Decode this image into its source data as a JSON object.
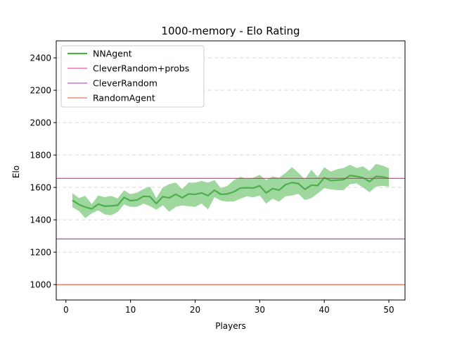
{
  "chart_data": {
    "type": "line",
    "title": "1000-memory - Elo Rating",
    "xlabel": "Players",
    "ylabel": "Elo",
    "xlim": [
      -1.5,
      52.5
    ],
    "ylim": [
      905,
      2505
    ],
    "xticks": [
      0,
      10,
      20,
      30,
      40,
      50
    ],
    "yticks": [
      1000,
      1200,
      1400,
      1600,
      1800,
      2000,
      2200,
      2400
    ],
    "grid": {
      "y": true,
      "x": false,
      "style": "dashed"
    },
    "legend_position": "top-left",
    "series": [
      {
        "name": "NNAgent",
        "kind": "line_with_band",
        "color": "#4daf4a",
        "band_color": "#9fd89f",
        "x": [
          1,
          2,
          3,
          4,
          5,
          6,
          7,
          8,
          9,
          10,
          11,
          12,
          13,
          14,
          15,
          16,
          17,
          18,
          19,
          20,
          21,
          22,
          23,
          24,
          25,
          26,
          27,
          28,
          29,
          30,
          31,
          32,
          33,
          34,
          35,
          36,
          37,
          38,
          39,
          40,
          41,
          42,
          43,
          44,
          45,
          46,
          47,
          48,
          49,
          50
        ],
        "values": [
          1520,
          1495,
          1478,
          1468,
          1497,
          1484,
          1486,
          1490,
          1538,
          1518,
          1522,
          1545,
          1543,
          1500,
          1543,
          1535,
          1558,
          1536,
          1560,
          1557,
          1566,
          1549,
          1583,
          1557,
          1560,
          1573,
          1596,
          1598,
          1596,
          1610,
          1566,
          1593,
          1583,
          1617,
          1630,
          1624,
          1588,
          1614,
          1612,
          1660,
          1642,
          1645,
          1648,
          1674,
          1668,
          1660,
          1636,
          1668,
          1665,
          1657
        ],
        "lower": [
          1478,
          1455,
          1410,
          1440,
          1458,
          1433,
          1428,
          1448,
          1495,
          1480,
          1480,
          1500,
          1485,
          1462,
          1490,
          1450,
          1480,
          1488,
          1484,
          1480,
          1500,
          1464,
          1540,
          1518,
          1512,
          1513,
          1530,
          1545,
          1538,
          1550,
          1500,
          1530,
          1512,
          1545,
          1550,
          1560,
          1522,
          1534,
          1563,
          1595,
          1588,
          1583,
          1583,
          1620,
          1625,
          1600,
          1570,
          1605,
          1610,
          1605
        ],
        "upper": [
          1565,
          1535,
          1548,
          1497,
          1550,
          1540,
          1548,
          1532,
          1582,
          1558,
          1568,
          1590,
          1605,
          1535,
          1600,
          1620,
          1630,
          1590,
          1630,
          1630,
          1640,
          1630,
          1645,
          1595,
          1610,
          1645,
          1665,
          1655,
          1660,
          1678,
          1645,
          1668,
          1660,
          1690,
          1725,
          1690,
          1650,
          1708,
          1665,
          1725,
          1698,
          1712,
          1720,
          1740,
          1720,
          1730,
          1702,
          1745,
          1735,
          1718
        ]
      },
      {
        "name": "CleverRandom+probs",
        "kind": "hline",
        "color": "#e7298a",
        "value": 1656
      },
      {
        "name": "CleverRandom",
        "kind": "hline",
        "color": "#b42fbf",
        "value": 1282
      },
      {
        "name": "RandomAgent",
        "kind": "hline",
        "color": "#e8503a",
        "value": 1000
      }
    ]
  }
}
